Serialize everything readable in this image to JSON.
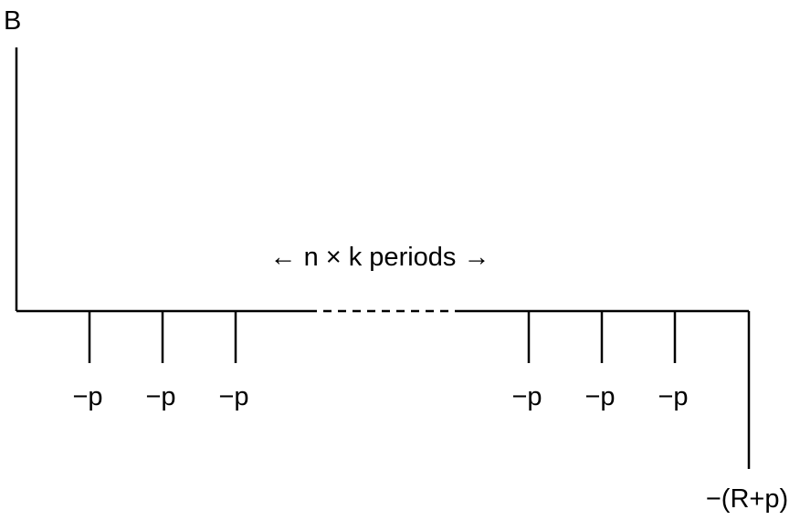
{
  "diagram": {
    "top_label": "B",
    "period_label": "← n × k periods →",
    "payment_label": "−p",
    "payment_labels_left": [
      "−p",
      "−p",
      "−p"
    ],
    "payment_labels_right": [
      "−p",
      "−p",
      "−p"
    ],
    "final_label": "−(R+p)",
    "line_color": "#000000"
  }
}
